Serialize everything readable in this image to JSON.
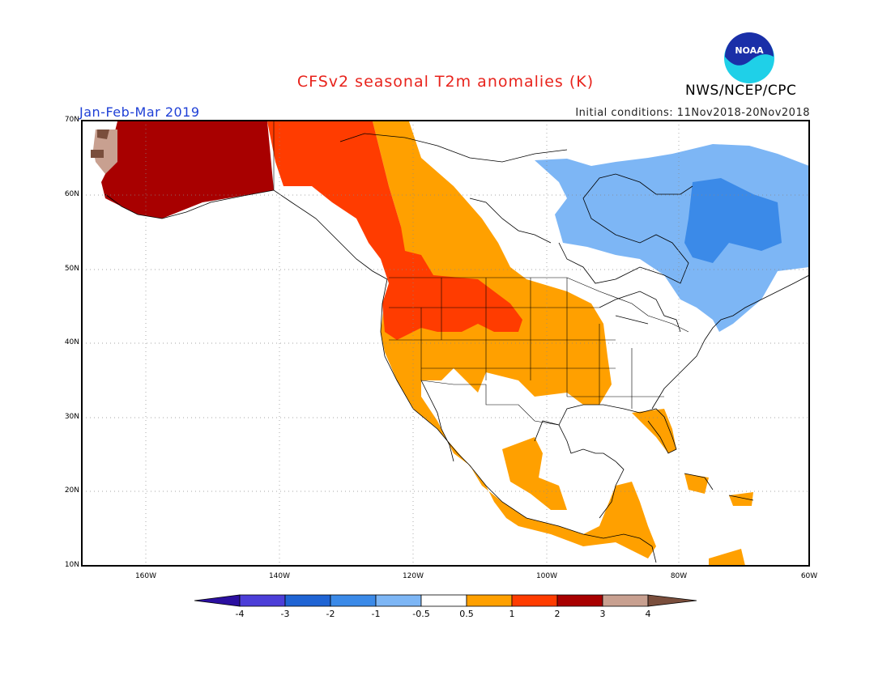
{
  "title": "CFSv2 seasonal T2m anomalies (K)",
  "season": "Jan-Feb-Mar 2019",
  "initial_conditions": "Initial conditions: 11Nov2018-20Nov2018",
  "agency": "NWS/NCEP/CPC",
  "logo_text": "NOAA",
  "map": {
    "lat_labels": [
      "70N",
      "60N",
      "50N",
      "40N",
      "30N",
      "20N",
      "10N"
    ],
    "lon_labels": [
      "160W",
      "140W",
      "120W",
      "100W",
      "80W",
      "60W"
    ],
    "grid": "dotted"
  },
  "colorbar": {
    "labels": [
      "-4",
      "-3",
      "-2",
      "-1",
      "-0.5",
      "0.5",
      "1",
      "2",
      "3",
      "4"
    ],
    "colors": [
      "#2b0fa0",
      "#4c3ed8",
      "#1f64d4",
      "#3b8ae8",
      "#7db6f5",
      "#ffffff",
      "#ffa000",
      "#ff3c00",
      "#a80000",
      "#c8a090",
      "#7a4e3c"
    ]
  },
  "regions": [
    {
      "name": "alaska-anomaly-3K",
      "color": "#a80000"
    },
    {
      "name": "west-canada-anomaly-2K",
      "color": "#ff3c00"
    },
    {
      "name": "west-us-anomaly-1K",
      "color": "#ffa000"
    },
    {
      "name": "east-canada-anomaly-minus1K",
      "color": "#7db6f5"
    },
    {
      "name": "quebec-anomaly-minus2K",
      "color": "#3b8ae8"
    }
  ]
}
